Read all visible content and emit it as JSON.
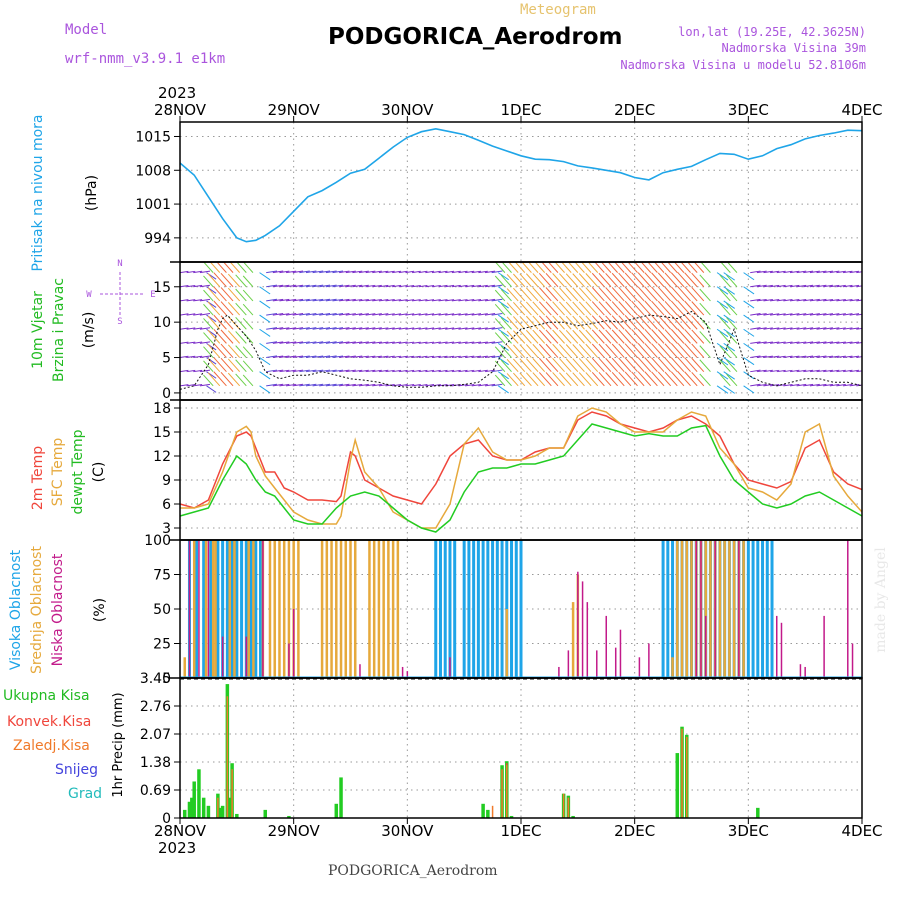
{
  "header": {
    "model_label": "Model",
    "model_name": "wrf-nmm_v3.9.1  e1km",
    "product": "Meteogram",
    "station": "PODGORICA_Aerodrom",
    "lonlat": "lon,lat (19.25E, 42.3625N)",
    "elevation": "Nadmorska Visina 39m",
    "model_elevation": "Nadmorska Visina u modelu 52.8106m"
  },
  "footer": {
    "station": "PODGORICA_Aerodrom",
    "credit": "made by Angel"
  },
  "time_axis": {
    "year": "2023",
    "labels": [
      "28NOV",
      "29NOV",
      "30NOV",
      "1DEC",
      "2DEC",
      "3DEC",
      "4DEC"
    ]
  },
  "colors": {
    "pressure": "#1fa5e8",
    "temp2m": "#f0463c",
    "sfc_temp": "#e6a93c",
    "dewpoint": "#22cc22",
    "high_cloud": "#1fa5e8",
    "mid_cloud": "#e6a93c",
    "low_cloud": "#c21a8a",
    "total_precip": "#22cc22",
    "conv_precip": "#f0463c",
    "frozen_precip": "#f07a2a",
    "snow": "#4444dd",
    "graupel": "#22bbbb",
    "wind_label": "#22bb22",
    "wind_axis": "#aa55dd"
  },
  "wind_compass": {
    "n": "N",
    "s": "S",
    "e": "E",
    "w": "W"
  },
  "chart_data": [
    {
      "type": "line",
      "panel": "pressure",
      "ylabel_name": "Pritisak na nivou mora",
      "ylabel_units": "(hPa)",
      "y_ticks": [
        "1015",
        "1008",
        "1001",
        "994"
      ],
      "ylim": [
        989,
        1018
      ],
      "x_unit": "hours since 28NOV 00UTC",
      "series": [
        {
          "name": "Pritisak na nivou mora",
          "x": [
            0,
            3,
            6,
            9,
            12,
            14,
            16,
            18,
            21,
            24,
            27,
            30,
            33,
            36,
            39,
            42,
            45,
            48,
            51,
            54,
            57,
            60,
            63,
            66,
            69,
            72,
            75,
            78,
            81,
            84,
            87,
            90,
            93,
            96,
            99,
            102,
            105,
            108,
            111,
            114,
            117,
            120,
            123,
            126,
            129,
            132,
            135,
            138,
            141,
            144
          ],
          "values": [
            1009.5,
            1007,
            1002.5,
            998,
            994,
            993.2,
            993.5,
            994.5,
            996.5,
            999.5,
            1002.5,
            1003.8,
            1005.5,
            1007.4,
            1008.2,
            1010.5,
            1012.8,
            1014.8,
            1016,
            1016.6,
            1016,
            1015.4,
            1014.2,
            1013,
            1012,
            1011,
            1010.3,
            1010.2,
            1009.8,
            1008.9,
            1008.5,
            1008,
            1007.5,
            1006.5,
            1006,
            1007.5,
            1008.2,
            1008.8,
            1010.2,
            1011.5,
            1011.3,
            1010.3,
            1011,
            1012.5,
            1013.3,
            1014.5,
            1015.2,
            1015.7,
            1016.3,
            1016.2
          ]
        }
      ]
    },
    {
      "type": "line",
      "panel": "wind",
      "ylabel_name": "10m Vjetar",
      "ylabel_name2": "Brzina i Pravac",
      "ylabel_units": "(m/s)",
      "y_ticks": [
        "15",
        "10",
        "5",
        "0"
      ],
      "ylim": [
        -1,
        18.5
      ],
      "x_unit": "hours since 28NOV 00UTC",
      "series": [
        {
          "name": "10m Vjetar",
          "x": [
            0,
            3,
            6,
            8,
            9,
            10,
            12,
            14,
            16,
            18,
            21,
            24,
            27,
            30,
            33,
            36,
            39,
            42,
            45,
            48,
            51,
            54,
            57,
            60,
            63,
            66,
            69,
            72,
            75,
            78,
            81,
            84,
            87,
            90,
            93,
            96,
            99,
            102,
            105,
            108,
            111,
            114,
            117,
            120,
            123,
            126,
            129,
            132,
            135,
            138,
            141,
            144
          ],
          "values": [
            0.5,
            1,
            4,
            9,
            10.5,
            11,
            9.5,
            8,
            6,
            3,
            2,
            2.5,
            2.5,
            3,
            2.5,
            2,
            1.8,
            1.5,
            1,
            0.8,
            0.8,
            1,
            1,
            1.2,
            1.5,
            3,
            7,
            9,
            9.5,
            10,
            10,
            9.5,
            9.8,
            10.2,
            10,
            10.5,
            11,
            10.8,
            10.5,
            11.5,
            10,
            4,
            9,
            2.5,
            1.5,
            1,
            1.5,
            2,
            2,
            1.5,
            1.5,
            1
          ]
        }
      ]
    },
    {
      "type": "line",
      "panel": "temperature",
      "ylabel_name": "2m Temp",
      "ylabel_name2": "SFC Temp",
      "ylabel_name3": "dewpt Temp",
      "ylabel_units": "(C)",
      "y_ticks": [
        "18",
        "15",
        "12",
        "9",
        "6",
        "3"
      ],
      "ylim": [
        1.5,
        19
      ],
      "x_unit": "hours since 28NOV 00UTC",
      "series": [
        {
          "name": "2m Temp",
          "x": [
            0,
            3,
            6,
            9,
            12,
            14,
            15,
            16,
            18,
            20,
            22,
            24,
            27,
            30,
            33,
            34,
            36,
            37,
            39,
            42,
            45,
            48,
            51,
            54,
            57,
            60,
            63,
            66,
            69,
            72,
            75,
            78,
            81,
            84,
            87,
            90,
            93,
            96,
            99,
            102,
            105,
            108,
            111,
            114,
            117,
            120,
            123,
            126,
            129,
            132,
            135,
            138,
            141,
            144
          ],
          "values": [
            6,
            5.5,
            6.5,
            11,
            14.5,
            15,
            14.5,
            13,
            10,
            10,
            8,
            7.5,
            6.5,
            6.5,
            6.3,
            7,
            12.5,
            12,
            9,
            8,
            7,
            6.5,
            6,
            8.5,
            12,
            13.5,
            14,
            12,
            11.5,
            11.5,
            12.5,
            13,
            13,
            16.5,
            17.5,
            17,
            16,
            15.5,
            15,
            15.5,
            16.5,
            17,
            16,
            14.5,
            11,
            9,
            8.5,
            8,
            8.8,
            13,
            14,
            10,
            8.5,
            7.8
          ]
        },
        {
          "name": "SFC Temp",
          "x": [
            0,
            3,
            6,
            9,
            12,
            14,
            15,
            16,
            18,
            20,
            22,
            24,
            27,
            30,
            33,
            34,
            36,
            37,
            39,
            42,
            45,
            48,
            51,
            54,
            57,
            60,
            63,
            66,
            69,
            72,
            75,
            78,
            81,
            84,
            87,
            90,
            93,
            96,
            99,
            102,
            105,
            108,
            111,
            114,
            117,
            120,
            123,
            126,
            129,
            132,
            135,
            138,
            141,
            144
          ],
          "values": [
            5.5,
            5.5,
            6,
            10,
            15,
            15.7,
            15,
            12,
            9.5,
            8,
            6.5,
            5,
            4,
            3.5,
            3.5,
            4.5,
            11.5,
            14,
            10,
            8,
            5,
            4,
            3,
            3,
            6,
            13.5,
            15.5,
            12.5,
            11.5,
            11.5,
            12,
            13,
            13,
            17,
            18,
            17.5,
            16,
            15,
            15,
            15,
            16.5,
            17.5,
            17,
            13,
            11,
            8,
            7.5,
            6.5,
            8.5,
            15,
            16,
            9.5,
            7,
            5
          ]
        },
        {
          "name": "dewpt Temp",
          "x": [
            0,
            3,
            6,
            9,
            12,
            14,
            16,
            18,
            20,
            22,
            24,
            27,
            30,
            33,
            36,
            39,
            42,
            45,
            48,
            51,
            54,
            57,
            60,
            63,
            66,
            69,
            72,
            75,
            78,
            81,
            84,
            87,
            90,
            93,
            96,
            99,
            102,
            105,
            108,
            111,
            114,
            117,
            120,
            123,
            126,
            129,
            132,
            135,
            138,
            141,
            144
          ],
          "values": [
            4.5,
            5,
            5.5,
            9,
            12,
            11,
            9,
            7.5,
            7,
            5.5,
            4,
            3.5,
            3.5,
            5.5,
            7,
            7.5,
            7,
            5.5,
            4,
            3,
            2.5,
            4,
            7.5,
            10,
            10.5,
            10.5,
            11,
            11,
            11.5,
            12,
            14,
            16,
            15.5,
            15,
            14.5,
            14.8,
            14.5,
            14.5,
            15.5,
            15.8,
            12,
            9,
            7.5,
            6,
            5.5,
            6,
            7,
            7.5,
            6.5,
            5.5,
            4.5
          ]
        }
      ]
    },
    {
      "type": "bar",
      "panel": "clouds",
      "ylabel_name": "Visoka Oblacnost",
      "ylabel_name2": "Srednja Oblacnost",
      "ylabel_name3": "Niska Oblacnost",
      "ylabel_units": "(%)",
      "y_ticks": [
        "100",
        "75",
        "50",
        "25",
        "0"
      ],
      "ylim": [
        0,
        100
      ],
      "x_unit": "hours since 28NOV 00UTC",
      "series": [
        {
          "name": "Visoka Oblacnost",
          "x": [
            2,
            3.5,
            5,
            6.5,
            8,
            9,
            10,
            11,
            12,
            13,
            14,
            15,
            16,
            17,
            54,
            55,
            56,
            57,
            58,
            60,
            61,
            62,
            63,
            64,
            65,
            66,
            67,
            68,
            69,
            70,
            71,
            72,
            102,
            103,
            104,
            105,
            106,
            107,
            108,
            109,
            110,
            111,
            112,
            113,
            114,
            115,
            116,
            117,
            118,
            119,
            120,
            121,
            122,
            123,
            124,
            125
          ],
          "values": [
            100,
            100,
            100,
            100,
            100,
            100,
            100,
            100,
            100,
            100,
            100,
            100,
            100,
            100,
            100,
            100,
            100,
            100,
            100,
            100,
            100,
            100,
            100,
            100,
            100,
            100,
            100,
            100,
            100,
            100,
            100,
            100,
            100,
            100,
            100,
            100,
            100,
            100,
            100,
            100,
            100,
            100,
            100,
            100,
            100,
            100,
            100,
            100,
            100,
            100,
            100,
            100,
            100,
            100,
            100,
            100
          ]
        },
        {
          "name": "Srednja Oblacnost",
          "x": [
            1,
            3,
            5.5,
            7,
            7.5,
            10.5,
            11.5,
            14.5,
            15.5,
            17.5,
            19,
            20,
            21,
            22,
            23,
            24,
            25,
            30,
            31,
            32,
            33,
            34,
            35,
            36,
            37,
            40,
            41,
            42,
            43,
            44,
            45,
            46,
            69,
            83,
            84,
            104,
            105,
            106,
            107,
            108,
            109,
            110,
            111,
            112,
            113,
            114,
            115,
            116,
            117,
            118,
            119
          ],
          "values": [
            15,
            100,
            100,
            100,
            100,
            100,
            100,
            100,
            100,
            100,
            100,
            100,
            100,
            100,
            100,
            100,
            100,
            100,
            100,
            100,
            100,
            100,
            100,
            100,
            100,
            100,
            100,
            100,
            100,
            100,
            100,
            100,
            50,
            55,
            75,
            15,
            100,
            100,
            100,
            100,
            100,
            100,
            100,
            100,
            100,
            100,
            100,
            100,
            100,
            100,
            100
          ]
        },
        {
          "name": "Niska Oblacnost",
          "x": [
            2,
            4,
            6,
            9,
            14,
            17.5,
            23,
            24,
            38,
            47,
            48,
            57,
            80,
            82,
            84,
            85,
            86,
            88,
            90,
            92,
            93,
            97,
            99,
            109,
            110,
            111,
            113,
            118,
            126,
            127,
            131,
            132,
            136,
            141,
            142
          ],
          "values": [
            100,
            100,
            100,
            30,
            30,
            100,
            25,
            50,
            10,
            8,
            5,
            15,
            8,
            20,
            77,
            70,
            55,
            20,
            45,
            22,
            35,
            15,
            25,
            100,
            100,
            45,
            100,
            100,
            45,
            40,
            10,
            8,
            45,
            100,
            25
          ]
        }
      ]
    },
    {
      "type": "bar",
      "panel": "precip",
      "ylabel_name": "1hr Precip",
      "ylabel_units": "(mm)",
      "legend": [
        "Ukupna Kisa",
        "Konvek.Kisa",
        "Zaledj.Kisa",
        "Snijeg",
        "Grad"
      ],
      "y_ticks": [
        "3.45",
        "2.76",
        "2.07",
        "1.38",
        "0.69",
        "0"
      ],
      "ylim": [
        0,
        3.45
      ],
      "x_unit": "hours since 28NOV 00UTC",
      "series": [
        {
          "name": "Ukupna Kisa",
          "x": [
            1,
            2,
            2.5,
            3,
            4,
            5,
            6,
            8,
            8.5,
            9,
            10,
            10.5,
            11,
            12,
            18,
            23,
            33,
            34,
            64,
            65,
            68,
            69,
            70,
            81,
            82,
            83,
            105,
            106,
            107,
            122
          ],
          "values": [
            0.2,
            0.4,
            0.5,
            0.9,
            1.2,
            0.5,
            0.3,
            0.6,
            0.25,
            0.3,
            3.3,
            0.5,
            1.35,
            0.1,
            0.2,
            0.05,
            0.35,
            1.0,
            0.35,
            0.2,
            1.3,
            1.4,
            0.05,
            0.6,
            0.55,
            0.05,
            1.6,
            2.25,
            2.05,
            0.25
          ]
        },
        {
          "name": "Konvek.Kisa",
          "x": [
            10,
            69,
            82
          ],
          "values": [
            0.8,
            1.35,
            0.5
          ]
        },
        {
          "name": "Zaledj.Kisa",
          "x": [
            8,
            10,
            11,
            66,
            68,
            69,
            81,
            82,
            106,
            107
          ],
          "values": [
            0.5,
            3.0,
            1.2,
            0.3,
            1.2,
            1.3,
            0.6,
            0.5,
            2.2,
            2.0
          ]
        },
        {
          "name": "Snijeg",
          "x": [],
          "values": []
        },
        {
          "name": "Grad",
          "x": [],
          "values": []
        }
      ]
    }
  ]
}
